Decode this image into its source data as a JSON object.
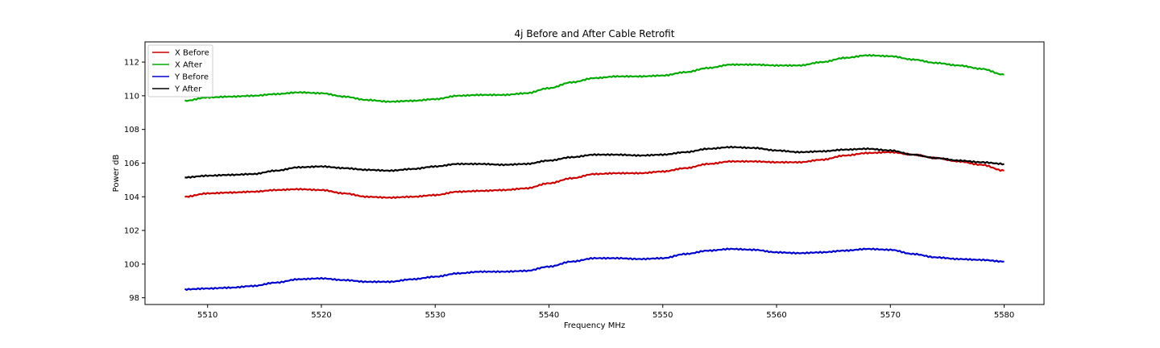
{
  "chart_data": {
    "type": "line",
    "title": "4j Before and After Cable Retrofit",
    "xlabel": "Frequency MHz",
    "ylabel": "Power dB",
    "xlim": [
      5504.5,
      5583.5
    ],
    "ylim": [
      97.6,
      113.2
    ],
    "xticks": [
      5510,
      5520,
      5530,
      5540,
      5550,
      5560,
      5570,
      5580
    ],
    "yticks": [
      98,
      100,
      102,
      104,
      106,
      108,
      110,
      112
    ],
    "grid": false,
    "legend_position": "top-left",
    "x": [
      5508,
      5510,
      5512,
      5514,
      5516,
      5518,
      5520,
      5522,
      5524,
      5526,
      5528,
      5530,
      5532,
      5534,
      5536,
      5538,
      5540,
      5542,
      5544,
      5546,
      5548,
      5550,
      5552,
      5554,
      5556,
      5558,
      5560,
      5562,
      5564,
      5566,
      5568,
      5570,
      5572,
      5574,
      5576,
      5578,
      5580
    ],
    "series": [
      {
        "name": "X Before",
        "color": "#cc0000",
        "values": [
          104.0,
          104.2,
          104.25,
          104.3,
          104.4,
          104.45,
          104.4,
          104.2,
          104.0,
          103.95,
          104.0,
          104.1,
          104.3,
          104.35,
          104.4,
          104.5,
          104.8,
          105.1,
          105.35,
          105.4,
          105.4,
          105.5,
          105.7,
          105.95,
          106.1,
          106.1,
          106.05,
          106.05,
          106.2,
          106.45,
          106.6,
          106.65,
          106.5,
          106.3,
          106.1,
          105.9,
          105.55
        ]
      },
      {
        "name": "X After",
        "color": "#00aa00",
        "values": [
          109.7,
          109.9,
          109.95,
          110.0,
          110.1,
          110.2,
          110.15,
          109.95,
          109.75,
          109.65,
          109.7,
          109.8,
          110.0,
          110.05,
          110.05,
          110.15,
          110.45,
          110.8,
          111.05,
          111.15,
          111.15,
          111.2,
          111.4,
          111.65,
          111.85,
          111.85,
          111.8,
          111.8,
          112.0,
          112.25,
          112.4,
          112.35,
          112.15,
          111.95,
          111.8,
          111.6,
          111.25
        ]
      },
      {
        "name": "Y Before",
        "color": "#0000cc",
        "values": [
          98.5,
          98.55,
          98.6,
          98.7,
          98.9,
          99.1,
          99.15,
          99.05,
          98.95,
          98.95,
          99.1,
          99.25,
          99.45,
          99.55,
          99.55,
          99.6,
          99.85,
          100.15,
          100.35,
          100.35,
          100.3,
          100.35,
          100.6,
          100.8,
          100.9,
          100.85,
          100.7,
          100.65,
          100.7,
          100.8,
          100.9,
          100.85,
          100.6,
          100.4,
          100.3,
          100.25,
          100.15
        ]
      },
      {
        "name": "Y After",
        "color": "#000000",
        "values": [
          105.15,
          105.25,
          105.3,
          105.35,
          105.55,
          105.75,
          105.8,
          105.7,
          105.6,
          105.55,
          105.65,
          105.8,
          105.95,
          105.95,
          105.9,
          105.95,
          106.15,
          106.35,
          106.5,
          106.5,
          106.45,
          106.5,
          106.65,
          106.85,
          106.95,
          106.9,
          106.75,
          106.65,
          106.7,
          106.8,
          106.85,
          106.75,
          106.5,
          106.3,
          106.15,
          106.05,
          105.95
        ]
      }
    ]
  }
}
